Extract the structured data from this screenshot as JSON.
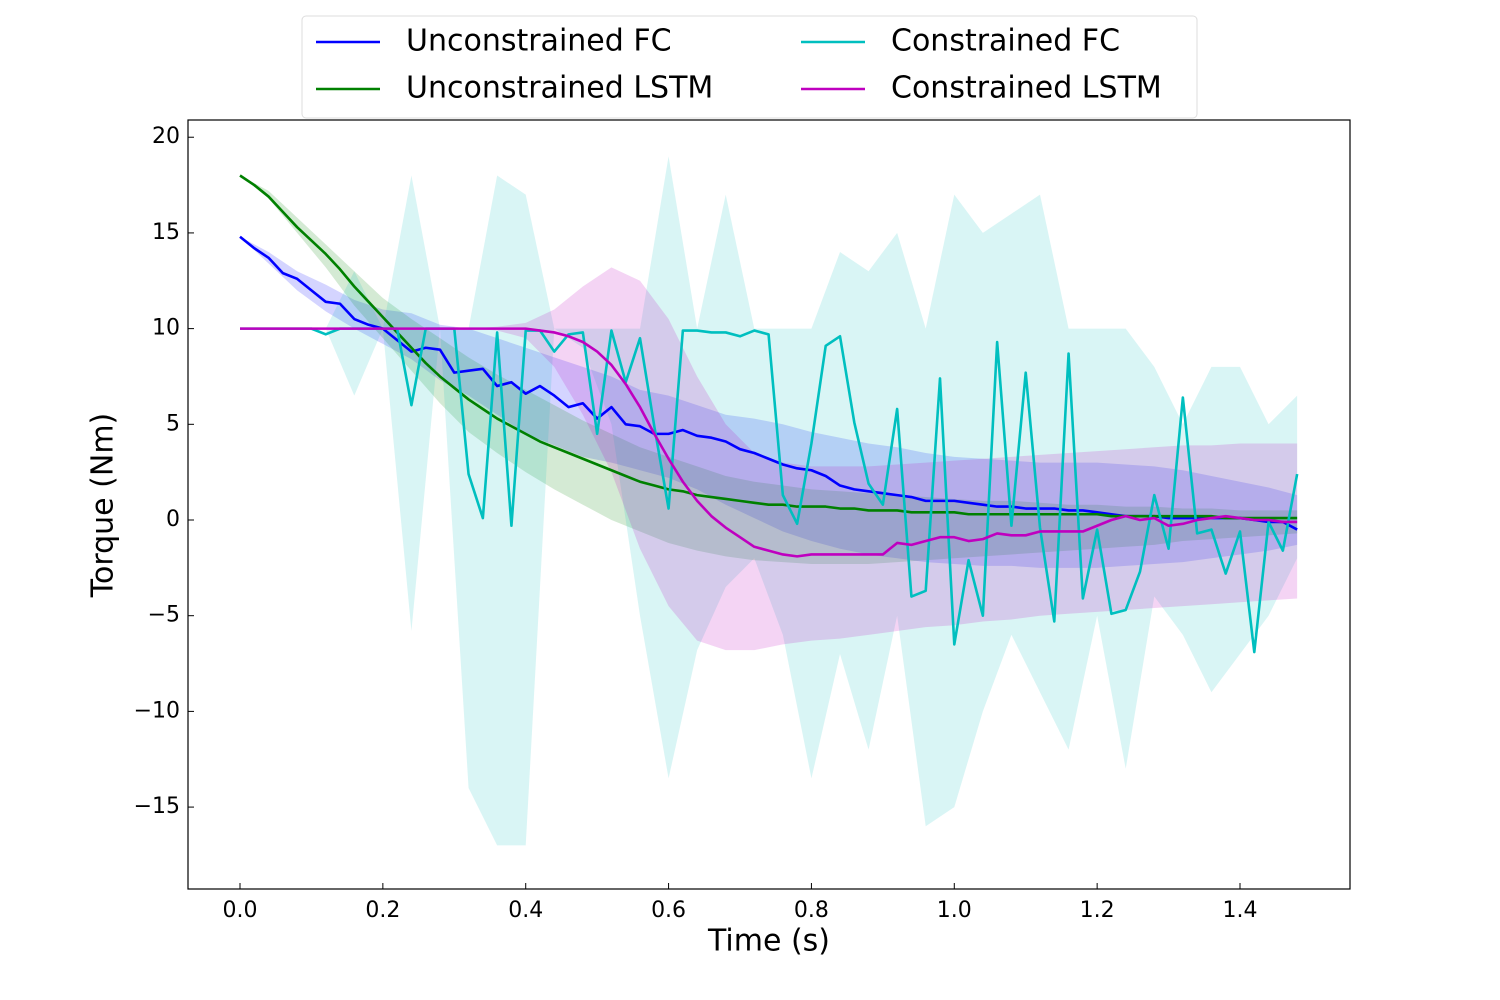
{
  "chart_data": {
    "type": "line",
    "xlabel": "Time (s)",
    "ylabel": "Torque (Nm)",
    "xlim": [
      -0.0728,
      1.554
    ],
    "ylim": [
      -19.28,
      20.9
    ],
    "xticks": [
      {
        "value": 0,
        "label": "0.0"
      },
      {
        "value": 0.2,
        "label": "0.2"
      },
      {
        "value": 0.4,
        "label": "0.4"
      },
      {
        "value": 0.6,
        "label": "0.6"
      },
      {
        "value": 0.8,
        "label": "0.8"
      },
      {
        "value": 1.0,
        "label": "1.0"
      },
      {
        "value": 1.2,
        "label": "1.2"
      },
      {
        "value": 1.4,
        "label": "1.4"
      }
    ],
    "yticks": [
      {
        "value": -15,
        "label": "−15"
      },
      {
        "value": -10,
        "label": "−10"
      },
      {
        "value": -5,
        "label": "−5"
      },
      0,
      5,
      10,
      15,
      20
    ],
    "legend": "upper center",
    "x": [
      0,
      0.02,
      0.04,
      0.06,
      0.08,
      0.1,
      0.12,
      0.14,
      0.16,
      0.18,
      0.2,
      0.22,
      0.24,
      0.26,
      0.28,
      0.3,
      0.32,
      0.34,
      0.36,
      0.38,
      0.4,
      0.42,
      0.44,
      0.46,
      0.48,
      0.5,
      0.52,
      0.54,
      0.56,
      0.58,
      0.6,
      0.62,
      0.64,
      0.66,
      0.68,
      0.7,
      0.72,
      0.74,
      0.76,
      0.78,
      0.8,
      0.82,
      0.84,
      0.86,
      0.88,
      0.9,
      0.92,
      0.94,
      0.96,
      0.98,
      1.0,
      1.02,
      1.04,
      1.06,
      1.08,
      1.1,
      1.12,
      1.14,
      1.16,
      1.18,
      1.2,
      1.22,
      1.24,
      1.26,
      1.28,
      1.3,
      1.32,
      1.34,
      1.36,
      1.38,
      1.4,
      1.42,
      1.44,
      1.46,
      1.48
    ],
    "band_x": [
      0,
      0.04,
      0.08,
      0.12,
      0.16,
      0.2,
      0.24,
      0.28,
      0.32,
      0.36,
      0.4,
      0.44,
      0.48,
      0.52,
      0.56,
      0.6,
      0.64,
      0.68,
      0.72,
      0.76,
      0.8,
      0.84,
      0.88,
      0.92,
      0.96,
      1.0,
      1.04,
      1.08,
      1.12,
      1.16,
      1.2,
      1.24,
      1.28,
      1.32,
      1.36,
      1.4,
      1.44,
      1.48
    ],
    "series": [
      {
        "name": "Unconstrained FC",
        "color": "#0000ff",
        "values": [
          14.8,
          14.2,
          13.7,
          12.9,
          12.6,
          12.0,
          11.4,
          11.3,
          10.5,
          10.2,
          10.0,
          9.4,
          8.8,
          9.0,
          8.9,
          7.7,
          7.8,
          7.9,
          7.0,
          7.2,
          6.6,
          7.0,
          6.5,
          5.9,
          6.1,
          5.3,
          5.9,
          5.0,
          4.9,
          4.5,
          4.5,
          4.7,
          4.4,
          4.3,
          4.1,
          3.7,
          3.5,
          3.2,
          2.9,
          2.7,
          2.6,
          2.3,
          1.8,
          1.6,
          1.5,
          1.4,
          1.3,
          1.2,
          1.0,
          1.0,
          1.0,
          0.9,
          0.8,
          0.7,
          0.7,
          0.6,
          0.6,
          0.6,
          0.5,
          0.5,
          0.4,
          0.3,
          0.2,
          0.2,
          0.2,
          0.1,
          0.1,
          0.1,
          0.1,
          0.1,
          0.1,
          0.0,
          -0.1,
          -0.1,
          -0.5
        ],
        "upper": [
          14.8,
          14,
          13,
          12.3,
          11.5,
          11,
          10.8,
          10.2,
          10.0,
          9.5,
          9,
          8.5,
          8,
          7.5,
          6.8,
          6.5,
          6,
          5.5,
          5.3,
          5,
          4.6,
          4.3,
          4,
          3.8,
          3.5,
          3.3,
          3.2,
          3.1,
          3.0,
          3.0,
          3.0,
          2.9,
          2.8,
          2.6,
          2.3,
          2.0,
          1.7,
          1.3
        ],
        "lower": [
          14.8,
          13.4,
          12,
          10.9,
          10,
          9.2,
          8.4,
          7.3,
          6.5,
          5.5,
          4.5,
          3.9,
          3.3,
          3.0,
          2.6,
          2.2,
          1.6,
          0.8,
          0.1,
          -0.6,
          -1.1,
          -1.5,
          -1.8,
          -2.0,
          -2.2,
          -2.3,
          -2.4,
          -2.4,
          -2.5,
          -2.5,
          -2.5,
          -2.4,
          -2.3,
          -2.2,
          -2.0,
          -1.8,
          -1.6,
          -1.3
        ]
      },
      {
        "name": "Unconstrained LSTM",
        "color": "#008000",
        "values": [
          18.0,
          17.5,
          16.9,
          16.1,
          15.3,
          14.6,
          13.9,
          13.1,
          12.2,
          11.4,
          10.6,
          9.8,
          9.0,
          8.2,
          7.5,
          6.9,
          6.3,
          5.8,
          5.3,
          4.9,
          4.5,
          4.1,
          3.8,
          3.5,
          3.2,
          2.9,
          2.6,
          2.3,
          2.0,
          1.8,
          1.6,
          1.5,
          1.3,
          1.2,
          1.1,
          1.0,
          0.9,
          0.8,
          0.8,
          0.7,
          0.7,
          0.7,
          0.6,
          0.6,
          0.5,
          0.5,
          0.5,
          0.4,
          0.4,
          0.4,
          0.4,
          0.3,
          0.3,
          0.3,
          0.3,
          0.3,
          0.3,
          0.3,
          0.3,
          0.3,
          0.3,
          0.2,
          0.2,
          0.2,
          0.2,
          0.2,
          0.2,
          0.2,
          0.2,
          0.1,
          0.1,
          0.1,
          0.1,
          0.1,
          0.1
        ],
        "upper": [
          18,
          17.2,
          15.8,
          14.4,
          13,
          11.6,
          10.5,
          9.5,
          8.5,
          7.6,
          6.8,
          6,
          5.2,
          4.5,
          3.8,
          3.3,
          2.8,
          2.3,
          2.0,
          1.8,
          1.6,
          1.5,
          1.4,
          1.3,
          1.2,
          1.1,
          1.0,
          1.0,
          0.9,
          0.8,
          0.8,
          0.7,
          0.7,
          0.6,
          0.6,
          0.5,
          0.5,
          0.5
        ],
        "lower": [
          18,
          16.8,
          15,
          13.2,
          11.2,
          9.5,
          7.8,
          6.1,
          4.6,
          3.5,
          2.5,
          1.6,
          0.8,
          0,
          -0.6,
          -1.2,
          -1.6,
          -1.9,
          -2.1,
          -2.2,
          -2.3,
          -2.3,
          -2.3,
          -2.2,
          -2.1,
          -2.0,
          -1.9,
          -1.8,
          -1.7,
          -1.6,
          -1.5,
          -1.4,
          -1.3,
          -1.1,
          -1,
          -0.9,
          -0.8,
          -0.7
        ]
      },
      {
        "name": "Constrained FC",
        "color": "#00bfbf",
        "values": [
          10,
          10,
          10,
          10,
          10,
          10,
          9.7,
          10,
          10,
          10,
          10,
          10,
          6.0,
          10,
          10,
          10,
          2.4,
          0.1,
          9.8,
          -0.3,
          9.9,
          9.9,
          8.8,
          9.7,
          9.8,
          4.5,
          9.9,
          7.2,
          9.5,
          4.9,
          0.6,
          9.9,
          9.9,
          9.8,
          9.8,
          9.6,
          9.9,
          9.7,
          1.3,
          -0.2,
          4.0,
          9.1,
          9.6,
          5.1,
          1.9,
          0.8,
          5.8,
          -4.0,
          -3.7,
          7.4,
          -6.5,
          -2.1,
          -5.0,
          9.3,
          -0.3,
          7.7,
          -0.4,
          -5.3,
          8.7,
          -4.1,
          -0.5,
          -4.9,
          -4.7,
          -2.7,
          1.3,
          -1.5,
          6.4,
          -0.7,
          -0.5,
          -2.8,
          -0.6,
          -6.9,
          -0.1,
          -1.6,
          2.4
        ],
        "upper": [
          10,
          10,
          10,
          10,
          13,
          10,
          18,
          10,
          10,
          18,
          17,
          10,
          10,
          10,
          10,
          19,
          10,
          17,
          10,
          10,
          10,
          14,
          13,
          15,
          10,
          17,
          15,
          16,
          17,
          10,
          10,
          10,
          8,
          5,
          8,
          8,
          5,
          6.5
        ],
        "lower": [
          10,
          10,
          10,
          10,
          6.5,
          10,
          -5.8,
          10,
          -14,
          -17,
          -17,
          10,
          9,
          5,
          -5,
          -13.5,
          -6.8,
          -3.5,
          -2,
          -6,
          -13.5,
          -7,
          -12,
          -5,
          -16,
          -15,
          -10,
          -6,
          -9,
          -12,
          -5,
          -13,
          -4,
          -6,
          -9,
          -7,
          -5,
          -2
        ]
      },
      {
        "name": "Constrained LSTM",
        "color": "#bf00bf",
        "values": [
          10,
          10,
          10,
          10,
          10,
          10,
          10,
          10,
          10,
          10,
          10,
          10,
          10,
          10,
          10,
          10,
          10,
          10,
          10,
          10,
          10,
          9.9,
          9.8,
          9.6,
          9.3,
          8.8,
          8.1,
          7.1,
          5.9,
          4.5,
          3.2,
          2.0,
          1.0,
          0.2,
          -0.4,
          -0.9,
          -1.4,
          -1.6,
          -1.8,
          -1.9,
          -1.8,
          -1.8,
          -1.8,
          -1.8,
          -1.8,
          -1.8,
          -1.2,
          -1.3,
          -1.1,
          -0.9,
          -0.9,
          -1.1,
          -1.0,
          -0.7,
          -0.8,
          -0.8,
          -0.6,
          -0.6,
          -0.6,
          -0.6,
          -0.3,
          0.0,
          0.2,
          0.0,
          0.1,
          -0.3,
          -0.2,
          0.0,
          0.1,
          0.2,
          0.1,
          0.0,
          0.0,
          -0.1,
          -0.1
        ],
        "upper": [
          10,
          10,
          10,
          10,
          10,
          10,
          10,
          10,
          10,
          10.1,
          10.3,
          11,
          12.2,
          13.2,
          12.5,
          10.5,
          7.5,
          5,
          3.5,
          3,
          2.8,
          2.8,
          2.8,
          2.9,
          3.0,
          3.1,
          3.2,
          3.3,
          3.4,
          3.5,
          3.6,
          3.7,
          3.8,
          3.9,
          3.9,
          4.0,
          4.0,
          4.0
        ],
        "lower": [
          10,
          10,
          10,
          10,
          10,
          10,
          10,
          10,
          10,
          9.9,
          9.5,
          8,
          5.5,
          2.5,
          -1.5,
          -4.5,
          -6.3,
          -6.8,
          -6.8,
          -6.5,
          -6.3,
          -6.2,
          -6,
          -5.8,
          -5.6,
          -5.5,
          -5.3,
          -5.2,
          -5,
          -4.9,
          -4.8,
          -4.7,
          -4.6,
          -4.5,
          -4.4,
          -4.3,
          -4.2,
          -4.1
        ]
      }
    ]
  }
}
